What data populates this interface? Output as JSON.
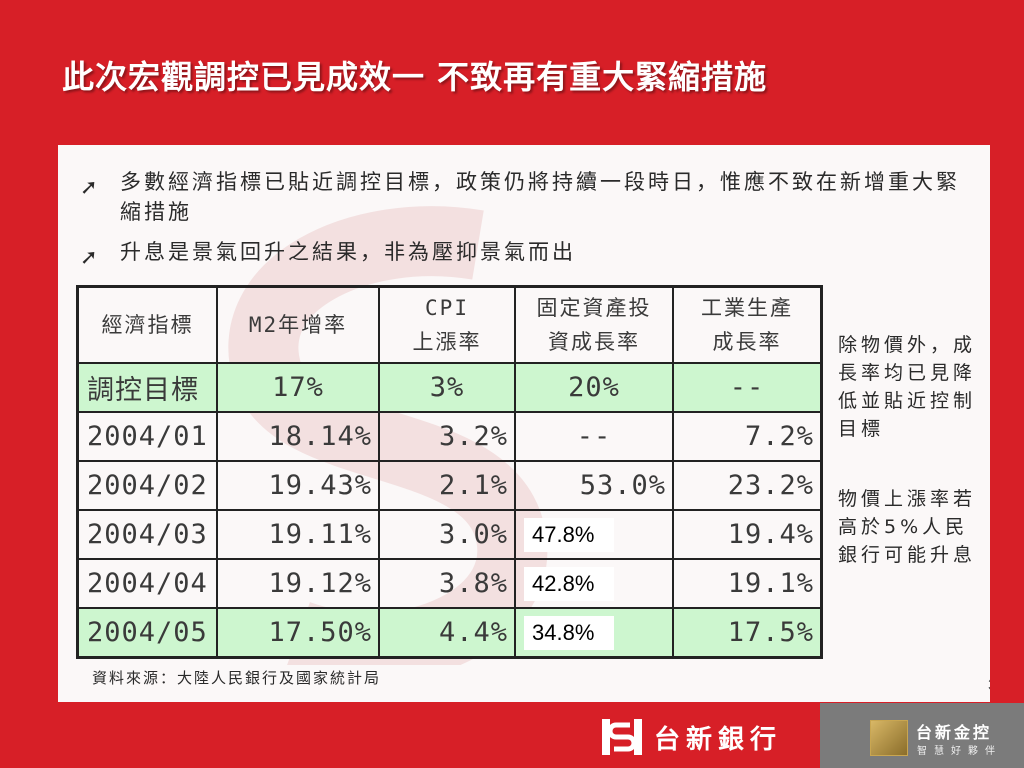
{
  "slide": {
    "title": "此次宏觀調控已見成效一 不致再有重大緊縮措施",
    "page_number": "35"
  },
  "bullets": [
    {
      "icon": "arrow-icon",
      "text": "多數經濟指標已貼近調控目標，政策仍將持續一段時日，惟應不致在新增重大緊縮措施"
    },
    {
      "icon": "arrow-icon",
      "text": "升息是景氣回升之結果，非為壓抑景氣而出"
    }
  ],
  "table": {
    "headers": [
      [
        "經濟指標"
      ],
      [
        "M2年增率"
      ],
      [
        "CPI",
        "上漲率"
      ],
      [
        "固定資產投",
        "資成長率"
      ],
      [
        "工業生產",
        "成長率"
      ]
    ],
    "rows": [
      {
        "label": "調控目標",
        "m2": "17%",
        "cpi": "3%",
        "fai": "20%",
        "ip": "--"
      },
      {
        "label": "2004/01",
        "m2": "18.14%",
        "cpi": "3.2%",
        "fai": "--",
        "ip": "7.2%"
      },
      {
        "label": "2004/02",
        "m2": "19.43%",
        "cpi": "2.1%",
        "fai": "53.0%",
        "ip": "23.2%"
      },
      {
        "label": "2004/03",
        "m2": "19.11%",
        "cpi": "3.0%",
        "fai": "47.8%",
        "ip": "19.4%"
      },
      {
        "label": "2004/04",
        "m2": "19.12%",
        "cpi": "3.8%",
        "fai": "42.8%",
        "ip": "19.1%"
      },
      {
        "label": "2004/05",
        "m2": "17.50%",
        "cpi": "4.4%",
        "fai": "34.8%",
        "ip": "17.5%"
      }
    ]
  },
  "side_notes": [
    "除物價外，成長率均已見降低並貼近控制目標",
    "物價上漲率若高於5%人民銀行可能升息"
  ],
  "source": "資料來源：大陸人民銀行及國家統計局",
  "footer": {
    "bank_name": "台新銀行",
    "holding_name": "台新金控",
    "holding_tagline": "智慧好夥伴"
  },
  "colors": {
    "brand_red": "#d71f27",
    "highlight_green": "#cdf6cf",
    "footer_gray": "#7b7b7b"
  }
}
